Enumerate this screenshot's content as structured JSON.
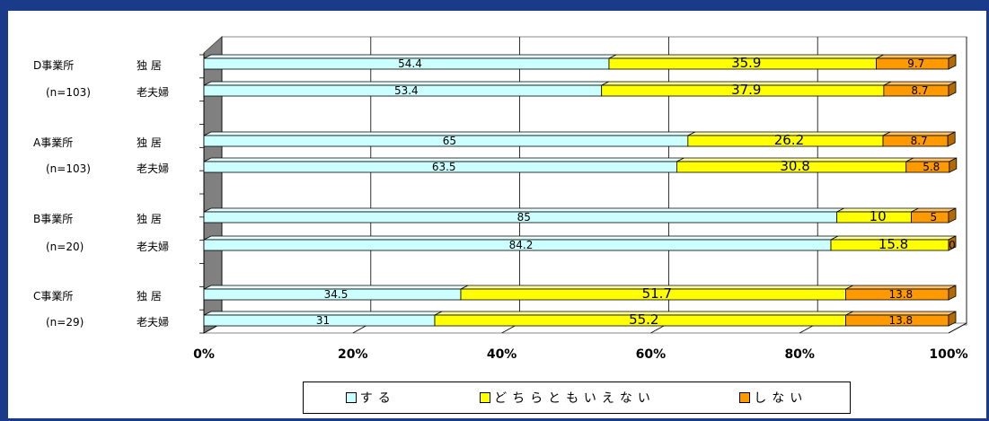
{
  "chart_data": {
    "type": "bar",
    "orientation": "horizontal",
    "stacked": "percent",
    "groups": [
      {
        "office": "D事業所",
        "n": "(n=103)"
      },
      {
        "office": "A事業所",
        "n": "(n=103)"
      },
      {
        "office": "B事業所",
        "n": "(n=20)"
      },
      {
        "office": "C事業所",
        "n": "(n=29)"
      }
    ],
    "categories": [
      {
        "row": "独 居",
        "group": 0
      },
      {
        "row": "老夫婦",
        "group": 0
      },
      {
        "row": "独 居",
        "group": 1
      },
      {
        "row": "老夫婦",
        "group": 1
      },
      {
        "row": "独 居",
        "group": 2
      },
      {
        "row": "老夫婦",
        "group": 2
      },
      {
        "row": "独 居",
        "group": 3
      },
      {
        "row": "老夫婦",
        "group": 3
      }
    ],
    "series": [
      {
        "name": "する",
        "color": "#ccffff",
        "values": [
          54.4,
          53.4,
          65,
          63.5,
          85,
          84.2,
          34.5,
          31
        ]
      },
      {
        "name": "どちらともいえない",
        "color": "#ffff00",
        "values": [
          35.9,
          37.9,
          26.2,
          30.8,
          10,
          15.8,
          51.7,
          55.2
        ]
      },
      {
        "name": "しない",
        "color": "#ff9900",
        "values": [
          9.7,
          8.7,
          8.7,
          5.8,
          5,
          0,
          13.8,
          13.8
        ]
      }
    ],
    "value_labels": [
      [
        "54.4",
        "53.4",
        "65",
        "63.5",
        "85",
        "84.2",
        "34.5",
        "31"
      ],
      [
        "35.9",
        "37.9",
        "26.2",
        "30.8",
        "10",
        "15.8",
        "51.7",
        "55.2"
      ],
      [
        "9.7",
        "8.7",
        "8.7",
        "5.8",
        "5",
        "0",
        "13.8",
        "13.8"
      ]
    ],
    "xticks": [
      "0%",
      "20%",
      "40%",
      "60%",
      "80%",
      "100%"
    ],
    "xlim": [
      0,
      100
    ],
    "grid": true,
    "legend": "bottom",
    "title": "",
    "xlabel": "",
    "ylabel": ""
  },
  "legend": {
    "items": [
      {
        "label": "する",
        "color": "#ccffff"
      },
      {
        "label": "どちらともいえない",
        "color": "#ffff00"
      },
      {
        "label": "しない",
        "color": "#ff9900"
      }
    ]
  }
}
